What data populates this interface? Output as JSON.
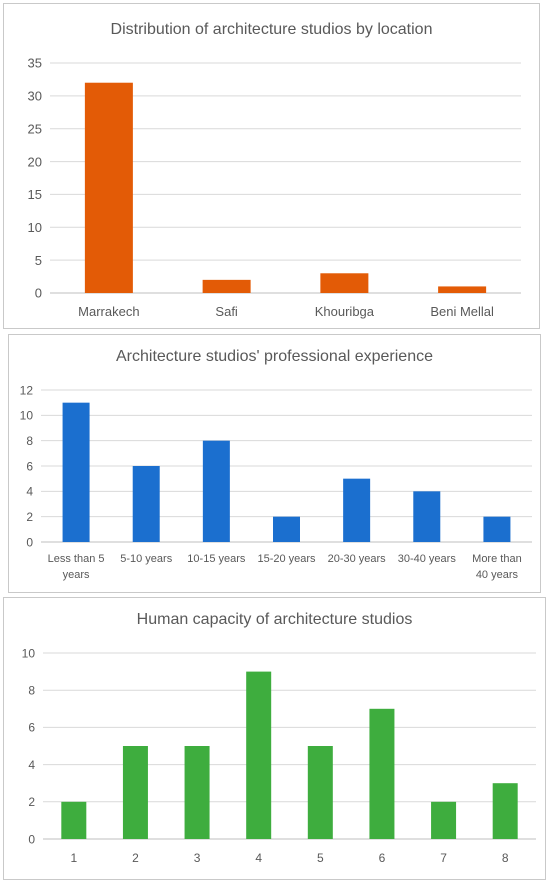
{
  "chart_data": [
    {
      "type": "bar",
      "title": "Distribution of architecture studios by location",
      "categories": [
        "Marrakech",
        "Safi",
        "Khouribga",
        "Beni Mellal"
      ],
      "values": [
        32,
        2,
        3,
        1
      ],
      "ylim": [
        0,
        35
      ],
      "yticks": [
        0,
        5,
        10,
        15,
        20,
        25,
        30,
        35
      ],
      "color": "#e35b06",
      "grid": true,
      "legend": "none"
    },
    {
      "type": "bar",
      "title": "Architecture studios' professional experience",
      "categories": [
        [
          "Less than 5",
          "years"
        ],
        [
          "5-10 years"
        ],
        [
          "10-15 years"
        ],
        [
          "15-20 years"
        ],
        [
          "20-30 years"
        ],
        [
          "30-40 years"
        ],
        [
          "More than",
          "40 years"
        ]
      ],
      "values": [
        11,
        6,
        8,
        2,
        5,
        4,
        2
      ],
      "ylim": [
        0,
        12
      ],
      "yticks": [
        0,
        2,
        4,
        6,
        8,
        10,
        12
      ],
      "color": "#1b6fcf",
      "grid": true,
      "legend": "none"
    },
    {
      "type": "bar",
      "title": "Human capacity of architecture studios",
      "categories": [
        "1",
        "2",
        "3",
        "4",
        "5",
        "6",
        "7",
        "8"
      ],
      "values": [
        2,
        5,
        5,
        9,
        5,
        7,
        2,
        3
      ],
      "ylim": [
        0,
        10
      ],
      "yticks": [
        0,
        2,
        4,
        6,
        8,
        10
      ],
      "color": "#3ead3e",
      "grid": true,
      "legend": "none"
    }
  ]
}
